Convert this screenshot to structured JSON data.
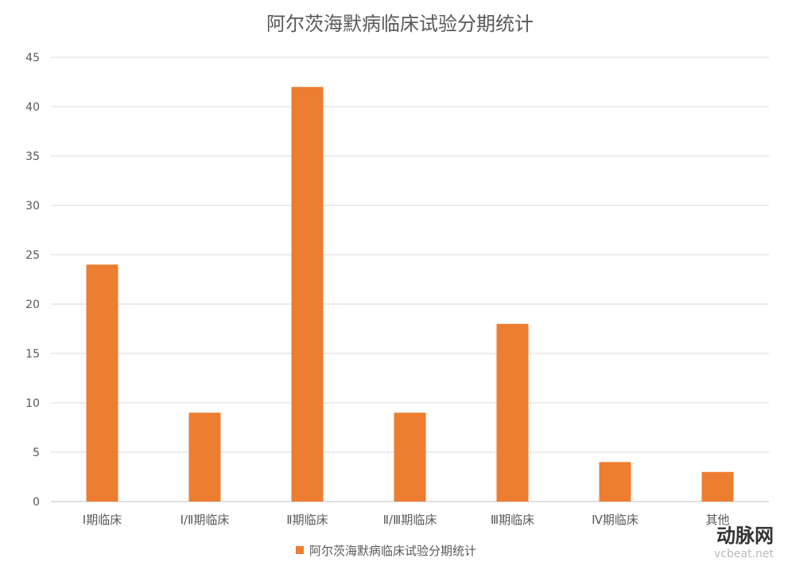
{
  "chart_data": {
    "type": "bar",
    "title": "阿尔茨海默病临床试验分期统计",
    "categories": [
      "Ⅰ期临床",
      "Ⅰ/Ⅱ期临床",
      "Ⅱ期临床",
      "Ⅱ/Ⅲ期临床",
      "Ⅲ期临床",
      "Ⅳ期临床",
      "其他"
    ],
    "series": [
      {
        "name": "阿尔茨海默病临床试验分期统计",
        "values": [
          24,
          9,
          42,
          9,
          18,
          4,
          3
        ],
        "color": "#ED7D31"
      }
    ],
    "xlabel": "",
    "ylabel": "",
    "ylim": [
      0,
      45
    ],
    "yticks": [
      0,
      5,
      10,
      15,
      20,
      25,
      30,
      35,
      40,
      45
    ],
    "grid": true,
    "legend_position": "bottom"
  },
  "watermark": {
    "name": "动脉网",
    "site": "vcbeat.net"
  }
}
